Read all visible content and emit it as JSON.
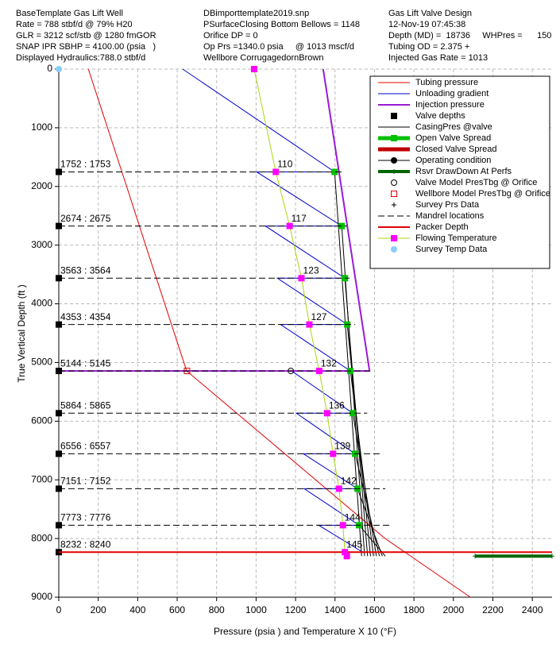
{
  "header": {
    "left": [
      "BaseTemplate Gas Lift Well",
      "Rate = 788 stbf/d @ 79% H20",
      "GLR = 3212 scf/stb @ 1280 fmGOR",
      "SNAP IPR SBHP = 4100.00 (psia   )",
      "Displayed Hydraulics:788.0 stbf/d"
    ],
    "center": [
      "DBimporttemplate2019.snp",
      "PSurfaceClosing Bottom Bellows = 1148",
      "Orifice DP = 0",
      "Op Prs =1340.0 psia     @ 1013 mscf/d",
      "Wellbore CorrugagedornBrown"
    ],
    "right": [
      "Gas Lift Valve Design",
      "12-Nov-19 07:45:38",
      "Depth (MD) =  18736     WHPres =      150",
      "Tubing OD = 2.375 +",
      "Injected Gas Rate = 1013"
    ]
  },
  "chart_data": {
    "type": "line",
    "xlabel": "Pressure (psia    ) and Temperature X 10 (°F)",
    "ylabel": "True Vertical Depth (ft )",
    "xlim": [
      0,
      2500
    ],
    "ylim": [
      0,
      9000
    ],
    "y_inverted": true,
    "xticks": [
      0,
      200,
      400,
      600,
      800,
      1000,
      1200,
      1400,
      1600,
      1800,
      2000,
      2200,
      2400
    ],
    "yticks": [
      0,
      1000,
      2000,
      3000,
      4000,
      5000,
      6000,
      7000,
      8000,
      9000
    ],
    "grid": true,
    "legend": "upper right",
    "mandrel_labels": [
      "1752 : 1753",
      "2674 : 2675",
      "3563 : 3564",
      "4353 : 4354",
      "5144 : 5145",
      "5864 : 5865",
      "6556 : 6557",
      "7151 : 7152",
      "7773 : 7776",
      "8232 : 8240"
    ],
    "series": [
      {
        "name": "Tubing pressure",
        "color": "#e00000",
        "style": "line",
        "x": [
          150,
          247,
          344,
          440,
          537,
          634,
          648,
          950,
          1302,
          1654,
          2086
        ],
        "y": [
          0,
          1000,
          2000,
          3000,
          4000,
          5000,
          5144,
          6000,
          7000,
          8000,
          9000
        ]
      },
      {
        "name": "Unloading gradient",
        "color": "#0000cc",
        "style": "line",
        "x": [
          628,
          1398,
          1003,
          1434,
          1047,
          1450,
          1108,
          1462,
          1124,
          1478,
          1180,
          1490,
          1204,
          1502,
          1240,
          1514,
          1244,
          1522,
          1317,
          1540
        ],
        "y": [
          0,
          1752,
          1752,
          2674,
          2674,
          3563,
          3563,
          4353,
          4353,
          5144,
          5144,
          5864,
          5864,
          6556,
          6556,
          7151,
          7151,
          7773,
          7773,
          8232
        ]
      },
      {
        "name": "Injection pressure",
        "color": "#9a1ad6",
        "style": "line",
        "width": 2,
        "x": [
          1340,
          1575,
          0
        ],
        "y": [
          0,
          5144,
          5144
        ]
      },
      {
        "name": "Valve depths",
        "color": "#000000",
        "style": "markers",
        "marker": "square",
        "x": [
          0,
          0,
          0,
          0,
          0,
          0,
          0,
          0,
          0,
          0
        ],
        "y": [
          1752,
          2674,
          3563,
          4353,
          5144,
          5864,
          6556,
          7151,
          7773,
          8232
        ]
      },
      {
        "name": "CasingPres @valve",
        "color": "#000000",
        "style": "line",
        "x": [
          1398,
          1535,
          null,
          1434,
          1550,
          null,
          1450,
          1565,
          null,
          1462,
          1580,
          null,
          1478,
          1595,
          null,
          1490,
          1610,
          null,
          1502,
          1625,
          null,
          1514,
          1640,
          null,
          1522,
          1655
        ],
        "y": [
          1752,
          8300,
          null,
          2674,
          8300,
          null,
          3563,
          8300,
          null,
          4353,
          8300,
          null,
          5144,
          8300,
          null,
          5864,
          8300,
          null,
          6556,
          8300,
          null,
          7151,
          8300,
          null,
          7773,
          8300
        ]
      },
      {
        "name": "Open Valve Spread",
        "color": "#00c000",
        "style": "markers",
        "marker": "square",
        "legend_line": 5,
        "x": [
          1398,
          1434,
          1450,
          1462,
          1478,
          1490,
          1502,
          1514,
          1522
        ],
        "y": [
          1752,
          2674,
          3563,
          4353,
          5144,
          5864,
          6556,
          7151,
          7773
        ]
      },
      {
        "name": "Closed Valve Spread",
        "color": "#c00000",
        "style": "line",
        "width": 5,
        "x": [],
        "y": []
      },
      {
        "name": "Operating condition",
        "color": "#000000",
        "style": "line+markers",
        "marker": "circle",
        "x": [],
        "y": []
      },
      {
        "name": "Rsvr DrawDown At Perfs",
        "color": "#006600",
        "style": "line+markers",
        "marker": "plus",
        "width": 4,
        "x": [
          2110,
          2500
        ],
        "y": [
          8300,
          8300
        ]
      },
      {
        "name": "Valve Model PresTbg @ Orifice",
        "color": "#000000",
        "style": "markers",
        "marker": "open-circle",
        "x": [
          1176
        ],
        "y": [
          5144
        ]
      },
      {
        "name": "Wellbore Model PresTbg @ Orifice",
        "color": "#e00000",
        "style": "markers",
        "marker": "open-square",
        "x": [
          650
        ],
        "y": [
          5144
        ]
      },
      {
        "name": "Survey Prs Data",
        "color": "#000000",
        "style": "markers",
        "marker": "plus",
        "x": [],
        "y": []
      },
      {
        "name": "Mandrel locations",
        "color": "#000000",
        "style": "line",
        "dash": true,
        "x": [
          0,
          1434,
          null,
          0,
          1462,
          null,
          0,
          1474,
          null,
          0,
          1502,
          null,
          0,
          1575,
          null,
          0,
          1563,
          null,
          0,
          1643,
          null,
          0,
          1655,
          null,
          0,
          1683
        ],
        "y": [
          1752,
          1752,
          null,
          2674,
          2674,
          null,
          3563,
          3563,
          null,
          4353,
          4353,
          null,
          5144,
          5144,
          null,
          5864,
          5864,
          null,
          6556,
          6556,
          null,
          7151,
          7151,
          null,
          7773,
          7773
        ]
      },
      {
        "name": "Packer Depth",
        "color": "#e00000",
        "style": "line",
        "width": 2,
        "x": [
          0,
          2500
        ],
        "y": [
          8232,
          8232
        ]
      },
      {
        "name": "Flowing Temperature",
        "color": "#ff00ff",
        "line_color": "#a8d810",
        "style": "line+markers",
        "marker": "square",
        "x": [
          990,
          1100,
          1170,
          1230,
          1270,
          1320,
          1360,
          1390,
          1420,
          1440,
          1450,
          1460
        ],
        "y": [
          0,
          1752,
          2674,
          3563,
          4353,
          5144,
          5864,
          6556,
          7151,
          7773,
          8232,
          8300
        ],
        "value_labels": [
          null,
          "110",
          "117",
          "123",
          "127",
          "132",
          "136",
          "139",
          "142",
          "144",
          "145",
          null
        ]
      },
      {
        "name": "Survey Temp Data",
        "color": "#87cefa",
        "style": "markers",
        "marker": "dot",
        "x": [
          0
        ],
        "y": [
          0
        ]
      }
    ]
  }
}
